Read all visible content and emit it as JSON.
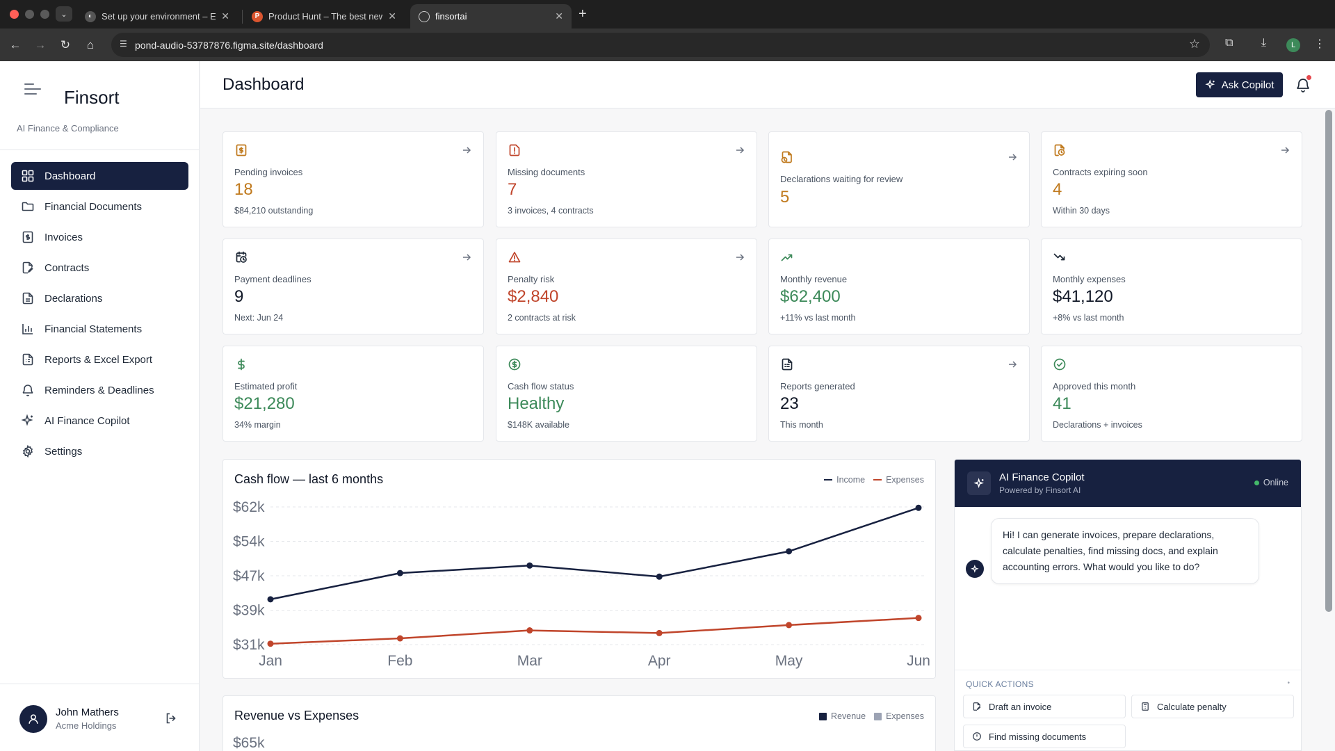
{
  "browser": {
    "tabs": [
      {
        "title": "Set up your environment – Ex",
        "icon": "figma-icon"
      },
      {
        "title": "Product Hunt – The best new",
        "icon": "product-hunt-icon"
      },
      {
        "title": "finsortai",
        "icon": "globe-icon"
      }
    ],
    "url": "pond-audio-53787876.figma.site/dashboard",
    "profile_initial": "L"
  },
  "sidebar": {
    "brand": "Finsort",
    "tagline": "AI Finance & Compliance",
    "items": [
      {
        "label": "Dashboard",
        "icon": "grid-icon",
        "active": true
      },
      {
        "label": "Financial Documents",
        "icon": "folder-icon"
      },
      {
        "label": "Invoices",
        "icon": "invoice-icon"
      },
      {
        "label": "Contracts",
        "icon": "contract-icon"
      },
      {
        "label": "Declarations",
        "icon": "document-icon"
      },
      {
        "label": "Financial Statements",
        "icon": "bar-chart-icon"
      },
      {
        "label": "Reports & Excel Export",
        "icon": "report-icon"
      },
      {
        "label": "Reminders & Deadlines",
        "icon": "bell-icon"
      },
      {
        "label": "AI Finance Copilot",
        "icon": "sparkle-icon"
      },
      {
        "label": "Settings",
        "icon": "gear-icon"
      }
    ],
    "user": {
      "name": "John Mathers",
      "org": "Acme Holdings"
    }
  },
  "header": {
    "title": "Dashboard",
    "copilot_button": "Ask Copilot"
  },
  "cards": [
    {
      "label": "Pending invoices",
      "value": "18",
      "sub": "$84,210 outstanding",
      "color": "#c07a1e",
      "icon": "invoice-dollar-icon",
      "arrow": true
    },
    {
      "label": "Missing documents",
      "value": "7",
      "sub": "3 invoices, 4 contracts",
      "color": "#c0452b",
      "icon": "alert-document-icon",
      "arrow": true
    },
    {
      "label": "Declarations waiting for review",
      "value": "5",
      "sub": "",
      "color": "#c07a1e",
      "icon": "document-clock-icon",
      "arrow": true
    },
    {
      "label": "Contracts expiring soon",
      "value": "4",
      "sub": "Within 30 days",
      "color": "#c07a1e",
      "icon": "contract-clock-icon",
      "arrow": true
    },
    {
      "label": "Payment deadlines",
      "value": "9",
      "sub": "Next: Jun 24",
      "color": "#111827",
      "icon": "calendar-clock-icon",
      "arrow": true
    },
    {
      "label": "Penalty risk",
      "value": "$2,840",
      "sub": "2 contracts at risk",
      "color": "#c0452b",
      "icon": "warning-triangle-icon",
      "arrow": true
    },
    {
      "label": "Monthly revenue",
      "value": "$62,400",
      "sub": "+11% vs last month",
      "color": "#3d8a5a",
      "icon": "trending-up-icon",
      "arrow": false
    },
    {
      "label": "Monthly expenses",
      "value": "$41,120",
      "sub": "+8% vs last month",
      "color": "#111827",
      "icon": "trending-down-icon",
      "arrow": false
    },
    {
      "label": "Estimated profit",
      "value": "$21,280",
      "sub": "34% margin",
      "color": "#3d8a5a",
      "icon": "dollar-icon",
      "arrow": false
    },
    {
      "label": "Cash flow status",
      "value": "Healthy",
      "sub": "$148K available",
      "color": "#3d8a5a",
      "icon": "dollar-circle-icon",
      "arrow": false
    },
    {
      "label": "Reports generated",
      "value": "23",
      "sub": "This month",
      "color": "#111827",
      "icon": "report-icon",
      "arrow": true
    },
    {
      "label": "Approved this month",
      "value": "41",
      "sub": "Declarations + invoices",
      "color": "#3d8a5a",
      "icon": "check-circle-icon",
      "arrow": false
    }
  ],
  "cashflow": {
    "title": "Cash flow — last 6 months",
    "legend_income": "Income",
    "legend_expenses": "Expenses",
    "colors": {
      "income": "#172140",
      "expenses": "#c0452b"
    }
  },
  "revenue_panel": {
    "title": "Revenue vs Expenses",
    "legend_revenue": "Revenue",
    "legend_expenses": "Expenses",
    "first_tick": "$65k",
    "colors": {
      "revenue": "#172140",
      "expenses": "#9ca3b4"
    }
  },
  "chart_data": {
    "type": "line",
    "title": "Cash flow — last 6 months",
    "categories": [
      "Jan",
      "Feb",
      "Mar",
      "Apr",
      "May",
      "Jun"
    ],
    "y_ticks": [
      "$62k",
      "$54k",
      "$47k",
      "$39k",
      "$31k"
    ],
    "ylim": [
      31000,
      62000
    ],
    "grid": true,
    "legend": "top-right",
    "series": [
      {
        "name": "Income",
        "values": [
          41200,
          47100,
          48800,
          46300,
          52000,
          61800
        ]
      },
      {
        "name": "Expenses",
        "values": [
          31200,
          32400,
          34200,
          33600,
          35400,
          37000
        ]
      }
    ]
  },
  "copilot": {
    "title": "AI Finance Copilot",
    "subtitle": "Powered by Finsort AI",
    "status": "Online",
    "message": "Hi! I can generate invoices, prepare declarations, calculate penalties, find missing docs, and explain accounting errors. What would you like to do?",
    "quick_actions_title": "QUICK ACTIONS",
    "quick_actions": [
      {
        "label": "Draft an invoice",
        "icon": "document-edit-icon"
      },
      {
        "label": "Calculate penalty",
        "icon": "calculator-icon"
      },
      {
        "label": "Find missing documents",
        "icon": "alert-circle-icon"
      }
    ]
  }
}
